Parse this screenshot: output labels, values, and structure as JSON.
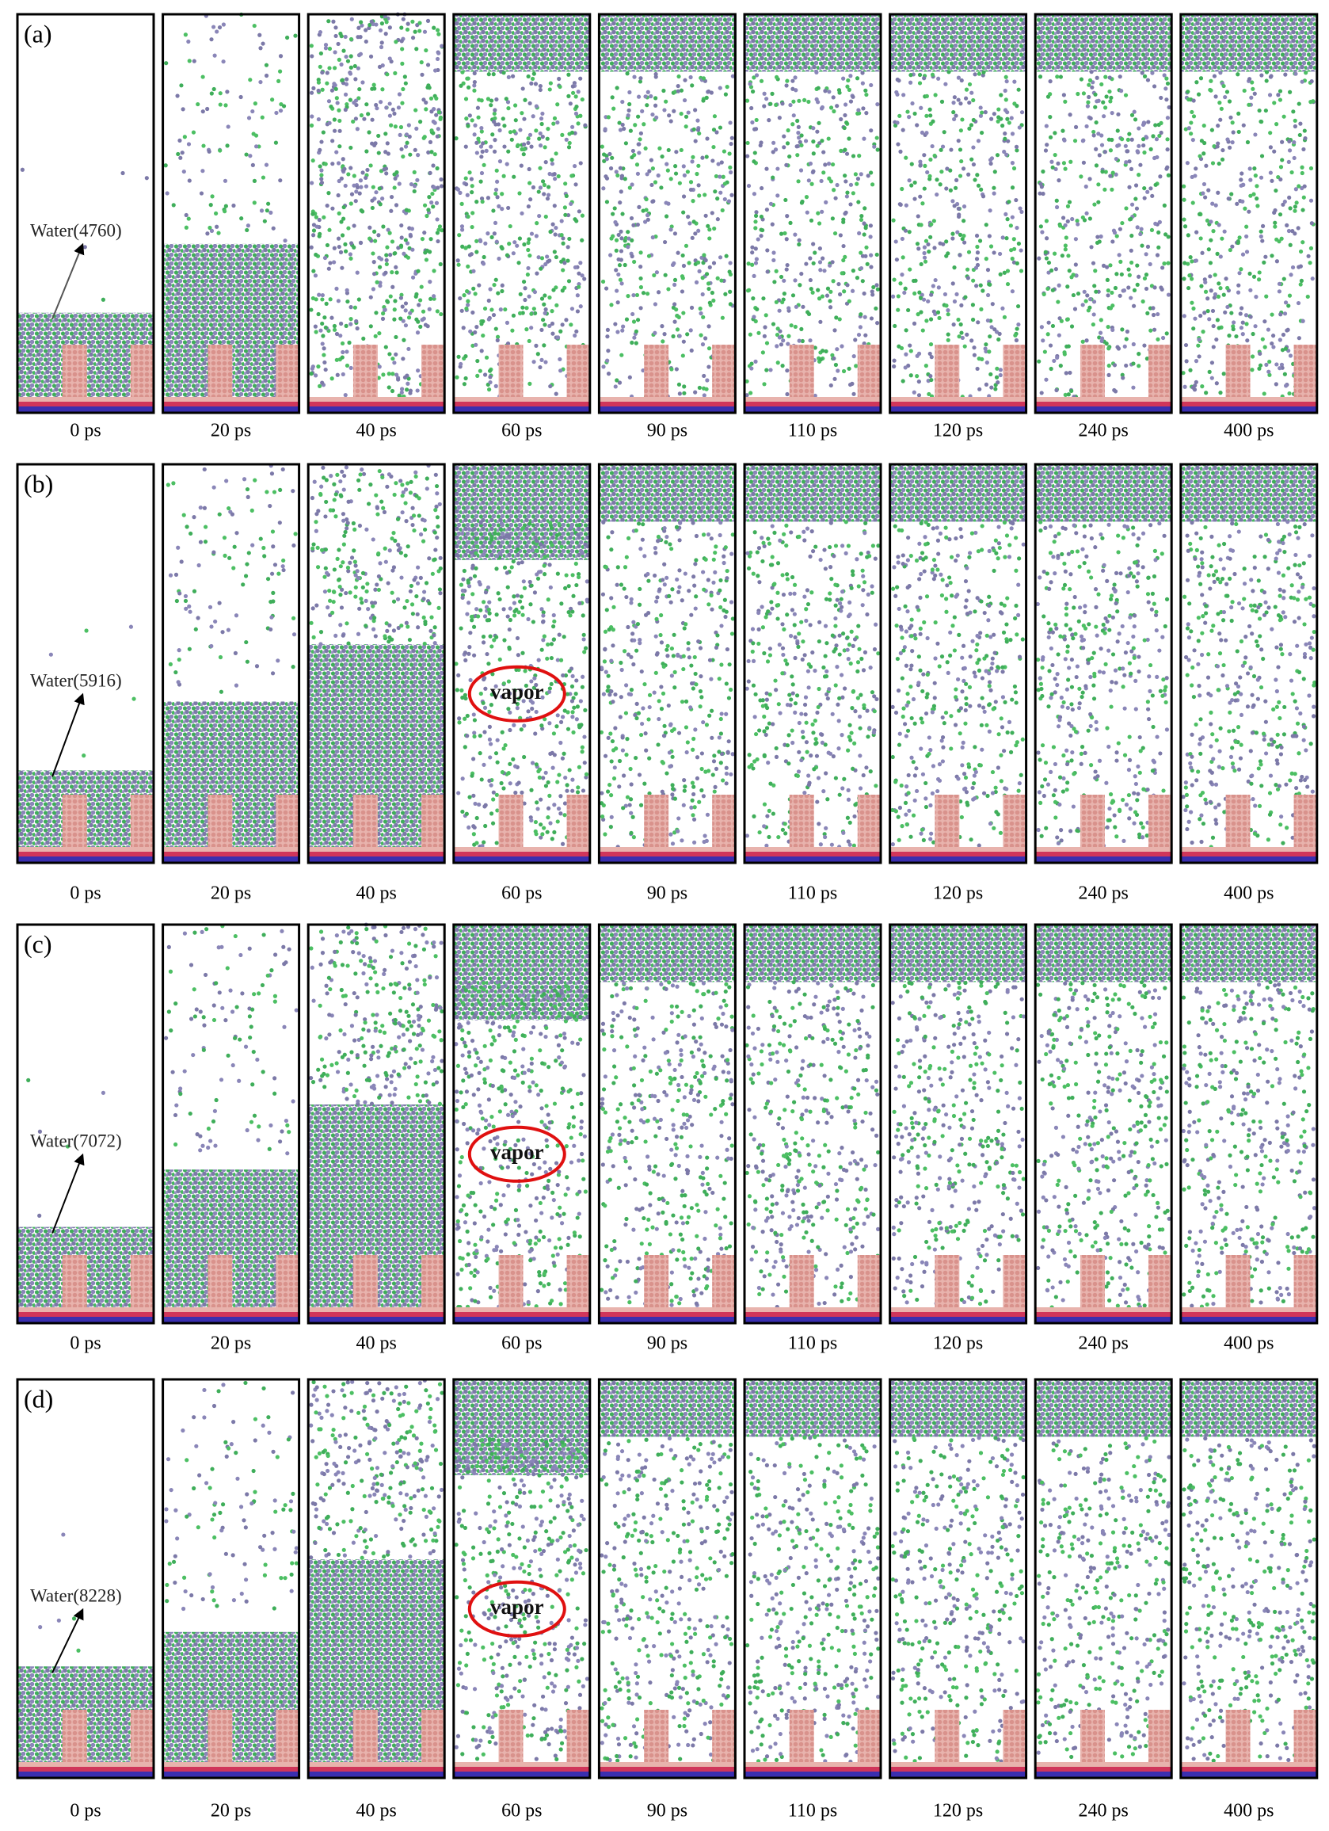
{
  "rows": [
    {
      "label": "(a)",
      "water": "Water(4760)",
      "times": [
        "0 ps",
        "20 ps",
        "40 ps",
        "60 ps",
        "90 ps",
        "110 ps",
        "120 ps",
        "240 ps",
        "400 ps"
      ]
    },
    {
      "label": "(b)",
      "water": "Water(5916)",
      "annotation": "vapor",
      "times": [
        "0 ps",
        "20 ps",
        "40 ps",
        "60 ps",
        "90 ps",
        "110 ps",
        "120 ps",
        "240 ps",
        "400 ps"
      ]
    },
    {
      "label": "(c)",
      "water": "Water(7072)",
      "annotation": "vapor",
      "times": [
        "0 ps",
        "20 ps",
        "40 ps",
        "60 ps",
        "90 ps",
        "110 ps",
        "120 ps",
        "240 ps",
        "400 ps"
      ]
    },
    {
      "label": "(d)",
      "water": "Water(8228)",
      "annotation": "vapor",
      "times": [
        "0 ps",
        "20 ps",
        "40 ps",
        "60 ps",
        "90 ps",
        "110 ps",
        "120 ps",
        "240 ps",
        "400 ps"
      ]
    }
  ]
}
